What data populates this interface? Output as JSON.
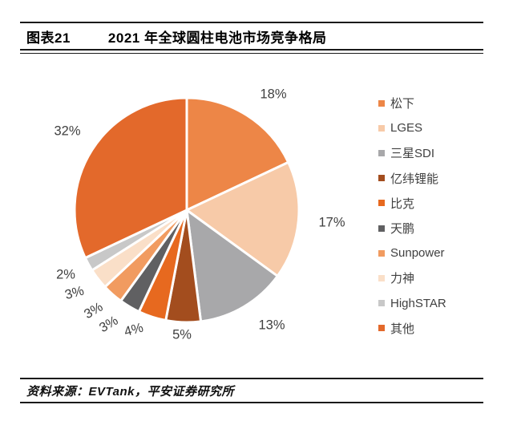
{
  "header": {
    "figure_label": "图表21",
    "title": "2021 年全球圆柱电池市场竞争格局"
  },
  "footer": {
    "source": "资料来源：EVTank，平安证券研究所"
  },
  "chart_data": {
    "type": "pie",
    "title": "2021 年全球圆柱电池市场竞争格局",
    "unit": "%",
    "start_angle_deg": 0,
    "direction": "clockwise",
    "legend_position": "right",
    "slice_border_color": "#ffffff",
    "label_color": "#404040",
    "series": [
      {
        "name": "松下",
        "value": 18,
        "label": "18%",
        "color": "#ED8647"
      },
      {
        "name": "LGES",
        "value": 17,
        "label": "17%",
        "color": "#F7CAA8"
      },
      {
        "name": "三星SDI",
        "value": 13,
        "label": "13%",
        "color": "#A8A8AA"
      },
      {
        "name": "亿纬锂能",
        "value": 5,
        "label": "5%",
        "color": "#A34D1E"
      },
      {
        "name": "比克",
        "value": 4,
        "label": "4%",
        "color": "#E7691F"
      },
      {
        "name": "天鹏",
        "value": 3,
        "label": "3%",
        "color": "#606062"
      },
      {
        "name": "Sunpower",
        "value": 3,
        "label": "3%",
        "color": "#F19B60"
      },
      {
        "name": "力神",
        "value": 3,
        "label": "3%",
        "color": "#FADFC8"
      },
      {
        "name": "HighSTAR",
        "value": 2,
        "label": "2%",
        "color": "#C8C8C8"
      },
      {
        "name": "其他",
        "value": 32,
        "label": "32%",
        "color": "#E3692B"
      }
    ]
  }
}
